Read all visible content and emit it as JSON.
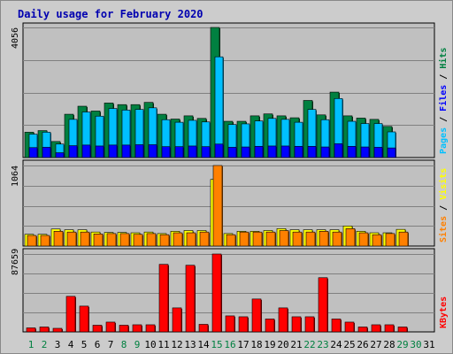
{
  "title": "Daily usage for February 2020",
  "colors": {
    "frame": "#cccccc",
    "panel": "#c0c0c0",
    "hits": "#008040",
    "files": "#00c0ff",
    "pages": "#0000ff",
    "visits": "#ffff00",
    "sites": "#ff8000",
    "kbytes": "#ff0000",
    "weekend_label": "#008040",
    "weekday_label": "#000000"
  },
  "chart_data": [
    {
      "type": "bar",
      "name": "hits-files-pages",
      "max_label": "4056",
      "ylim": [
        0,
        4056
      ],
      "legend": [
        "Pages",
        "Files",
        "Hits"
      ],
      "categories": [
        "1",
        "2",
        "3",
        "4",
        "5",
        "6",
        "7",
        "8",
        "9",
        "10",
        "11",
        "12",
        "13",
        "14",
        "15",
        "16",
        "17",
        "18",
        "19",
        "20",
        "21",
        "22",
        "23",
        "24",
        "25",
        "26",
        "27",
        "28",
        "29",
        "30",
        "31"
      ],
      "series": [
        {
          "name": "Hits",
          "values": [
            790,
            840,
            500,
            1350,
            1600,
            1450,
            1700,
            1650,
            1650,
            1720,
            1350,
            1200,
            1300,
            1220,
            4056,
            1130,
            1130,
            1300,
            1360,
            1300,
            1240,
            1780,
            1330,
            2040,
            1300,
            1230,
            1190,
            970,
            null,
            null,
            null
          ]
        },
        {
          "name": "Files",
          "values": [
            730,
            790,
            420,
            1190,
            1420,
            1290,
            1530,
            1480,
            1500,
            1550,
            1180,
            1100,
            1160,
            1110,
            3140,
            1030,
            1050,
            1140,
            1220,
            1190,
            1100,
            1500,
            1180,
            1840,
            1130,
            1060,
            1060,
            800,
            null,
            null,
            null
          ]
        },
        {
          "name": "Pages",
          "values": [
            310,
            320,
            150,
            370,
            390,
            360,
            390,
            390,
            400,
            400,
            340,
            340,
            360,
            340,
            420,
            320,
            330,
            350,
            360,
            360,
            350,
            350,
            330,
            430,
            350,
            330,
            320,
            300,
            null,
            null,
            null
          ]
        }
      ]
    },
    {
      "type": "bar",
      "name": "visits-sites",
      "max_label": "1064",
      "ylim": [
        0,
        1064
      ],
      "legend": [
        "Sites",
        "Visits"
      ],
      "categories": [
        "1",
        "2",
        "3",
        "4",
        "5",
        "6",
        "7",
        "8",
        "9",
        "10",
        "11",
        "12",
        "13",
        "14",
        "15",
        "16",
        "17",
        "18",
        "19",
        "20",
        "21",
        "22",
        "23",
        "24",
        "25",
        "26",
        "27",
        "28",
        "29",
        "30",
        "31"
      ],
      "series": [
        {
          "name": "Visits",
          "values": [
            155,
            155,
            225,
            215,
            215,
            185,
            180,
            180,
            175,
            185,
            165,
            195,
            205,
            205,
            880,
            165,
            195,
            195,
            205,
            230,
            215,
            215,
            215,
            215,
            265,
            195,
            175,
            175,
            220,
            null,
            null
          ]
        },
        {
          "name": "Sites",
          "values": [
            140,
            140,
            195,
            185,
            185,
            160,
            165,
            165,
            155,
            165,
            150,
            175,
            175,
            185,
            1064,
            150,
            185,
            185,
            185,
            205,
            185,
            185,
            195,
            185,
            230,
            175,
            150,
            165,
            185,
            null,
            null
          ]
        }
      ]
    },
    {
      "type": "bar",
      "name": "kbytes",
      "max_label": "87659",
      "ylim": [
        0,
        87659
      ],
      "legend": [
        "KBytes"
      ],
      "categories": [
        "1",
        "2",
        "3",
        "4",
        "5",
        "6",
        "7",
        "8",
        "9",
        "10",
        "11",
        "12",
        "13",
        "14",
        "15",
        "16",
        "17",
        "18",
        "19",
        "20",
        "21",
        "22",
        "23",
        "24",
        "25",
        "26",
        "27",
        "28",
        "29",
        "30",
        "31"
      ],
      "series": [
        {
          "name": "KBytes",
          "values": [
            4500,
            5500,
            4000,
            40000,
            29000,
            7500,
            11000,
            7500,
            8000,
            8000,
            76000,
            27000,
            75000,
            8500,
            87659,
            18000,
            17000,
            37000,
            14500,
            27000,
            17000,
            17000,
            61000,
            14500,
            11000,
            5500,
            8000,
            8000,
            5500,
            null,
            null
          ]
        }
      ]
    }
  ],
  "weekend_days": [
    "1",
    "2",
    "8",
    "9",
    "15",
    "16",
    "22",
    "23",
    "29",
    "30"
  ]
}
